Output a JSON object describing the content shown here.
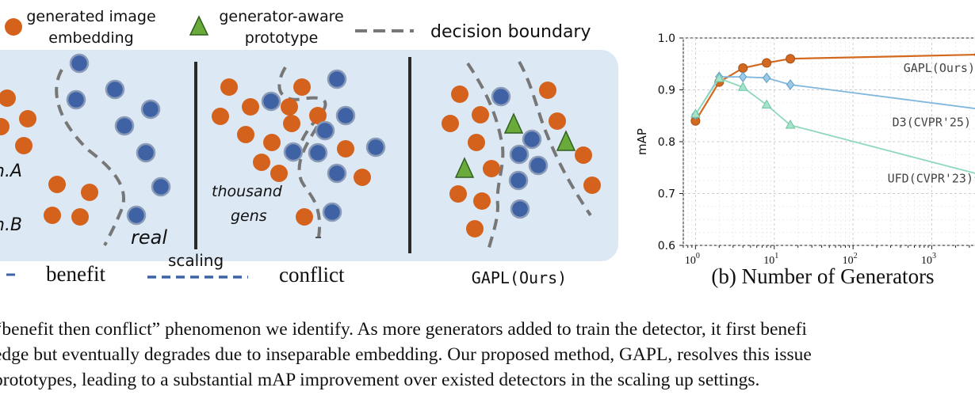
{
  "legend": {
    "generated_label_line1": "generated image",
    "generated_label_line2": "embedding",
    "prototype_label_line1": "generator-aware",
    "prototype_label_line2": "prototype",
    "boundary_label": "decision boundary"
  },
  "panels": {
    "left_label_a": "n.A",
    "left_label_b": "n.B",
    "real_label": "real",
    "middle_label_line1": "thousand",
    "middle_label_line2": "gens",
    "bottom_benefit": "benefit",
    "bottom_scaling": "scaling",
    "bottom_conflict": "conflict",
    "bottom_gapl": "GAPL(Ours)"
  },
  "colors": {
    "generated": "#d4621c",
    "real": "#3f62a4",
    "prototype": "#6aaa3a",
    "panel_bg": "#dde8f5",
    "gapl_line": "#d2691e",
    "d3_line": "#7fb7dd",
    "ufd_line": "#8fd8bd"
  },
  "chart_data": {
    "type": "line",
    "title": "",
    "xlabel": "(b)  Number of Generators",
    "ylabel": "mAP",
    "xscale": "log",
    "xlim": [
      0.7,
      5000
    ],
    "ylim": [
      0.6,
      1.0
    ],
    "yticks": [
      "0.6",
      "0.7",
      "0.8",
      "0.9",
      "1.0"
    ],
    "xticks": [
      {
        "value": 1,
        "base": "10",
        "exp": "0"
      },
      {
        "value": 10,
        "base": "10",
        "exp": "1"
      },
      {
        "value": 100,
        "base": "10",
        "exp": "2"
      },
      {
        "value": 1000,
        "base": "10",
        "exp": "3"
      }
    ],
    "grid": true,
    "series": [
      {
        "name": "GAPL(Ours)",
        "marker": "circle",
        "x": [
          1,
          2,
          4,
          8,
          16,
          4000
        ],
        "values": [
          0.84,
          0.915,
          0.942,
          0.952,
          0.96,
          0.968
        ]
      },
      {
        "name": "D3(CVPR'25)",
        "marker": "diamond",
        "x": [
          1,
          2,
          4,
          8,
          16,
          4000
        ],
        "values": [
          0.852,
          0.925,
          0.925,
          0.923,
          0.91,
          0.863
        ]
      },
      {
        "name": "UFD(CVPR'23)",
        "marker": "triangle",
        "x": [
          1,
          2,
          4,
          8,
          16,
          4000
        ],
        "values": [
          0.853,
          0.922,
          0.905,
          0.871,
          0.832,
          0.737
        ]
      }
    ]
  },
  "caption": {
    "line1": "“benefit then conflict” phenomenon we identify. As more generators added to train the detector, it first benefi",
    "line2": "edge but eventually degrades due to inseparable embedding. Our proposed method, GAPL, resolves this issue",
    "line3": " prototypes, leading to a substantial mAP improvement over existed detectors in the scaling up settings."
  }
}
